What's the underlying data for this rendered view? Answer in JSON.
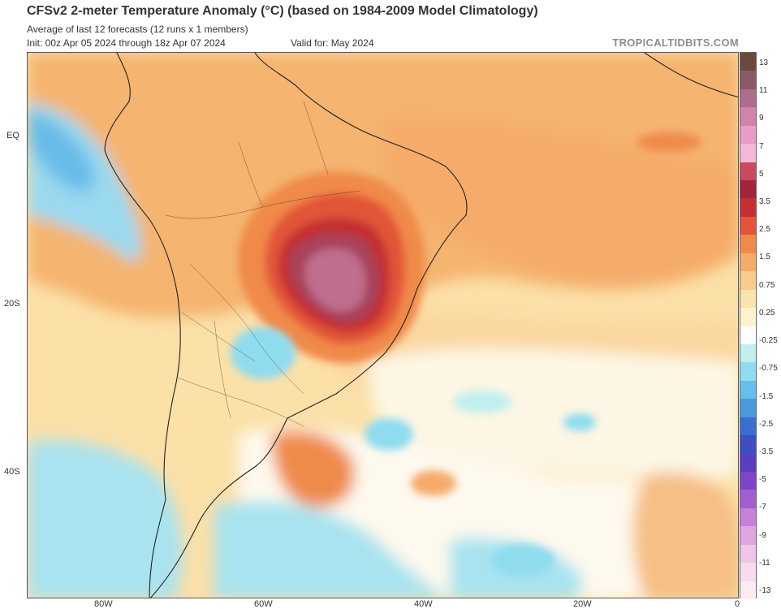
{
  "header": {
    "title": "CFSv2 2-meter Temperature Anomaly (°C) (based on 1984-2009 Model Climatology)",
    "subtitle": "Average of last 12 forecasts (12 runs x 1 members)",
    "init": "Init: 00z Apr 05 2024 through 18z Apr 07 2024",
    "valid": "Valid for: May 2024",
    "brand": "TROPICALTIDBITS.COM"
  },
  "map": {
    "lat_labels": [
      "EQ",
      "20S",
      "40S"
    ],
    "lon_labels": [
      "80W",
      "60W",
      "40W",
      "20W",
      "0"
    ]
  },
  "colorbar": {
    "labels": [
      "13",
      "11",
      "9",
      "7",
      "5",
      "3.5",
      "2.5",
      "1.5",
      "0.75",
      "0.25",
      "-0.25",
      "-0.75",
      "-1.5",
      "-2.5",
      "-3.5",
      "-5",
      "-7",
      "-9",
      "-11",
      "-13"
    ],
    "colors": [
      "#6a4a3c",
      "#8c5a64",
      "#b06c8c",
      "#d183ab",
      "#ea9cc6",
      "#f4b7d8",
      "#c9495f",
      "#a3243a",
      "#c42f33",
      "#e25539",
      "#f08a4a",
      "#f5ac6a",
      "#f9cb8e",
      "#fbe2ae",
      "#fdf4cf",
      "#ffffff",
      "#bff0ee",
      "#8fdcef",
      "#66bfe8",
      "#4a9adb",
      "#3a6fcf",
      "#3e4fc4",
      "#5a3ec0",
      "#7d46c8",
      "#a25fd0",
      "#c781d8",
      "#e0a4df",
      "#efc6e8",
      "#f6dcee",
      "#fbecf4"
    ]
  }
}
